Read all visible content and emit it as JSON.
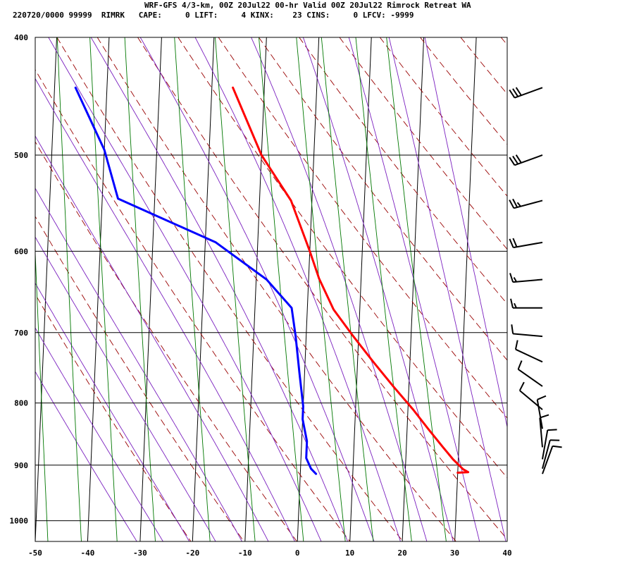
{
  "header": {
    "title": "WRF-GFS 4/3-km, 00Z 20Jul22 00-hr Valid 00Z 20Jul22 Rimrock Retreat WA",
    "info": "220720/0000 99999  RIMRK   CAPE:     0 LIFT:     4 KINX:    23 CINS:     0 LFCV: -9999"
  },
  "chart_data": {
    "type": "line",
    "title": "WRF-GFS 4/3-km, 00Z 20Jul22 00-hr Valid 00Z 20Jul22 Rimrock Retreat WA",
    "xlabel": "",
    "ylabel": "",
    "x_ticks": [
      "-50",
      "-40",
      "-30",
      "-20",
      "-10",
      "0",
      "10",
      "20",
      "30",
      "40"
    ],
    "y_ticks": [
      "400",
      "500",
      "600",
      "700",
      "800",
      "900",
      "1000"
    ],
    "xlim": [
      -50,
      40
    ],
    "ylim": [
      400,
      1040
    ],
    "y_scale": "log",
    "y_inverted": true,
    "skew_per_decade": 73.5,
    "series": [
      {
        "color": "#ff0000",
        "points": [
          [
            -16,
            440
          ],
          [
            -10,
            500
          ],
          [
            -4,
            545
          ],
          [
            0,
            600
          ],
          [
            2,
            632
          ],
          [
            5,
            670
          ],
          [
            9,
            705
          ],
          [
            13,
            740
          ],
          [
            17,
            775
          ],
          [
            21,
            810
          ],
          [
            24,
            840
          ],
          [
            27,
            870
          ],
          [
            29,
            890
          ],
          [
            31,
            907
          ],
          [
            32,
            912
          ],
          [
            30,
            913
          ]
        ]
      },
      {
        "color": "#0000ff",
        "points": [
          [
            -46,
            440
          ],
          [
            -40,
            495
          ],
          [
            -37,
            543
          ],
          [
            -18,
            590
          ],
          [
            -8,
            633
          ],
          [
            -3,
            668
          ],
          [
            -2,
            705
          ],
          [
            -1,
            755
          ],
          [
            0,
            805
          ],
          [
            0,
            825
          ],
          [
            1,
            860
          ],
          [
            1,
            888
          ],
          [
            2,
            906
          ],
          [
            3,
            915
          ]
        ]
      }
    ],
    "reference_lines": {
      "isotherm_color": "#000000",
      "dry_adiabat_color": "#990000",
      "moist_adiabat_color": "#7a1fbf",
      "mixing_ratio_color": "#007700"
    },
    "wind_barbs": [
      {
        "p": 440,
        "dir": 250,
        "spd": 30
      },
      {
        "p": 500,
        "dir": 250,
        "spd": 30
      },
      {
        "p": 545,
        "dir": 255,
        "spd": 25
      },
      {
        "p": 590,
        "dir": 260,
        "spd": 20
      },
      {
        "p": 633,
        "dir": 265,
        "spd": 15
      },
      {
        "p": 668,
        "dir": 270,
        "spd": 15
      },
      {
        "p": 705,
        "dir": 275,
        "spd": 10
      },
      {
        "p": 740,
        "dir": 295,
        "spd": 10
      },
      {
        "p": 775,
        "dir": 305,
        "spd": 10
      },
      {
        "p": 810,
        "dir": 310,
        "spd": 10
      },
      {
        "p": 840,
        "dir": 350,
        "spd": 10
      },
      {
        "p": 870,
        "dir": 355,
        "spd": 10
      },
      {
        "p": 890,
        "dir": 10,
        "spd": 10
      },
      {
        "p": 906,
        "dir": 15,
        "spd": 10
      },
      {
        "p": 915,
        "dir": 20,
        "spd": 10
      }
    ]
  }
}
